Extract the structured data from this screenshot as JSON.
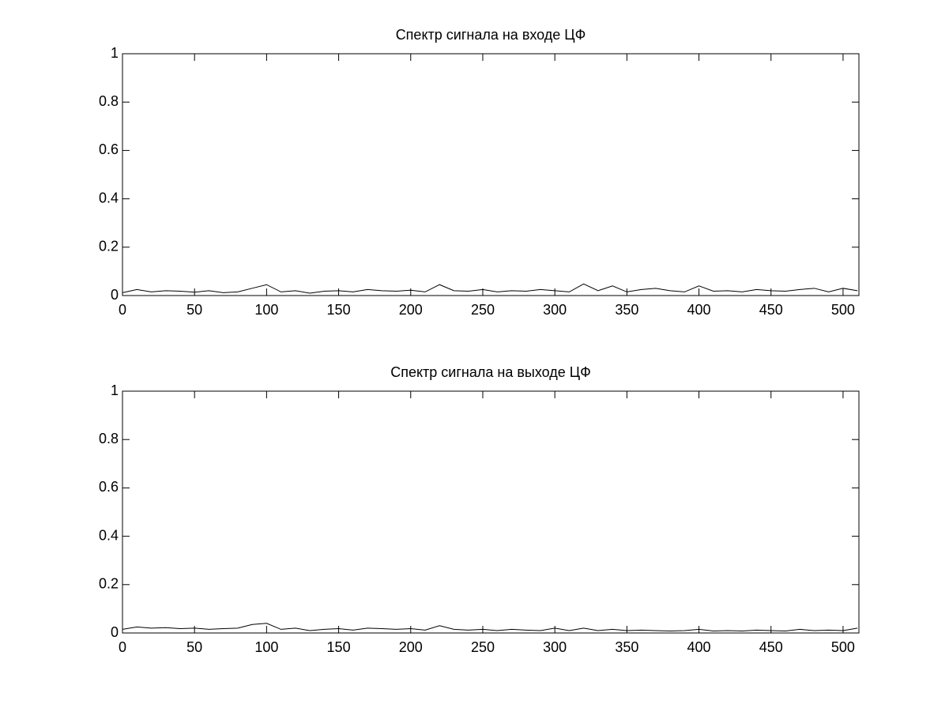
{
  "chart_data": [
    {
      "type": "line",
      "title": "Спектр сигнала на входе ЦФ",
      "x": [
        0,
        10,
        20,
        30,
        40,
        50,
        60,
        70,
        80,
        90,
        100,
        110,
        120,
        130,
        140,
        150,
        160,
        170,
        180,
        190,
        200,
        210,
        220,
        230,
        240,
        250,
        260,
        270,
        280,
        290,
        300,
        310,
        320,
        330,
        340,
        350,
        360,
        370,
        380,
        390,
        400,
        410,
        420,
        430,
        440,
        450,
        460,
        470,
        480,
        490,
        500,
        510
      ],
      "series": [
        {
          "color": "#000000",
          "values": [
            0.012,
            0.025,
            0.015,
            0.02,
            0.018,
            0.014,
            0.02,
            0.012,
            0.015,
            0.03,
            0.045,
            0.015,
            0.02,
            0.01,
            0.018,
            0.02,
            0.015,
            0.025,
            0.02,
            0.018,
            0.022,
            0.015,
            0.045,
            0.02,
            0.018,
            0.025,
            0.015,
            0.02,
            0.018,
            0.025,
            0.02,
            0.015,
            0.048,
            0.02,
            0.04,
            0.015,
            0.025,
            0.03,
            0.02,
            0.015,
            0.04,
            0.018,
            0.02,
            0.015,
            0.025,
            0.02,
            0.018,
            0.025,
            0.03,
            0.015,
            0.03,
            0.02
          ]
        }
      ],
      "xlim": [
        0,
        511
      ],
      "ylim": [
        0,
        1
      ],
      "xticks": [
        0,
        50,
        100,
        150,
        200,
        250,
        300,
        350,
        400,
        450,
        500
      ],
      "yticks": [
        0,
        0.2,
        0.4,
        0.6,
        0.8,
        1
      ]
    },
    {
      "type": "line",
      "title": "Спектр сигнала на выходе ЦФ",
      "x": [
        0,
        10,
        20,
        30,
        40,
        50,
        60,
        70,
        80,
        90,
        100,
        110,
        120,
        130,
        140,
        150,
        160,
        170,
        180,
        190,
        200,
        210,
        220,
        230,
        240,
        250,
        260,
        270,
        280,
        290,
        300,
        310,
        320,
        330,
        340,
        350,
        360,
        370,
        380,
        390,
        400,
        410,
        420,
        430,
        440,
        450,
        460,
        470,
        480,
        490,
        500,
        510
      ],
      "series": [
        {
          "color": "#000000",
          "values": [
            0.015,
            0.025,
            0.02,
            0.022,
            0.018,
            0.02,
            0.015,
            0.018,
            0.02,
            0.035,
            0.04,
            0.015,
            0.02,
            0.01,
            0.015,
            0.018,
            0.012,
            0.02,
            0.018,
            0.015,
            0.018,
            0.012,
            0.03,
            0.015,
            0.012,
            0.015,
            0.01,
            0.015,
            0.012,
            0.01,
            0.02,
            0.01,
            0.02,
            0.01,
            0.015,
            0.01,
            0.012,
            0.01,
            0.008,
            0.01,
            0.015,
            0.008,
            0.01,
            0.008,
            0.012,
            0.01,
            0.008,
            0.015,
            0.01,
            0.012,
            0.01,
            0.02
          ]
        }
      ],
      "xlim": [
        0,
        511
      ],
      "ylim": [
        0,
        1
      ],
      "xticks": [
        0,
        50,
        100,
        150,
        200,
        250,
        300,
        350,
        400,
        450,
        500
      ],
      "yticks": [
        0,
        0.2,
        0.4,
        0.6,
        0.8,
        1
      ]
    }
  ]
}
